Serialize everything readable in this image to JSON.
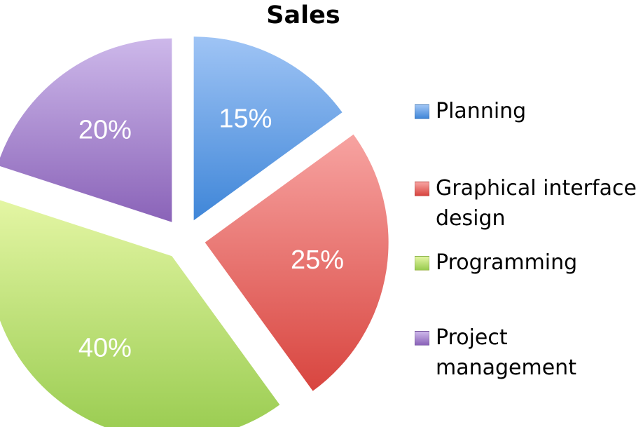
{
  "chart_data": {
    "type": "pie",
    "title": "Sales",
    "categories": [
      "Planning",
      "Graphical interface design",
      "Programming",
      "Project management"
    ],
    "values": [
      15,
      25,
      40,
      20
    ],
    "data_labels": [
      "15%",
      "25%",
      "40%",
      "20%"
    ],
    "colors": [
      {
        "light": "#9fc4f5",
        "dark": "#3f86d8"
      },
      {
        "light": "#f7a3a1",
        "dark": "#d8453f"
      },
      {
        "light": "#e4f6a4",
        "dark": "#98cb4f"
      },
      {
        "light": "#cdb8ea",
        "dark": "#8a63b8"
      }
    ],
    "exploded": true,
    "legend_position": "right"
  }
}
